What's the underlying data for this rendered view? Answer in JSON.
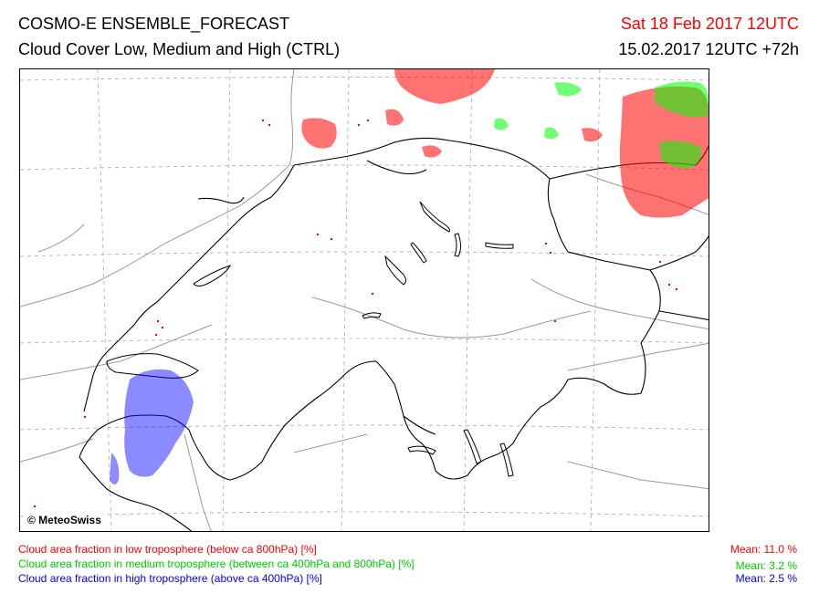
{
  "header": {
    "title": "COSMO-E ENSEMBLE_FORECAST",
    "subtitle": "Cloud Cover Low, Medium and High (CTRL)",
    "valid_time": "Sat 18 Feb 2017 12UTC",
    "run_time": "15.02.2017 12UTC +72h"
  },
  "map": {
    "copyright": "© MeteoSwiss",
    "colors": {
      "low": "#ff0000",
      "medium": "#00ff00",
      "high": "#0000ff",
      "borders": "#000000",
      "rivers": "#999999",
      "grid": "#aaaaaa"
    }
  },
  "legend": {
    "low": {
      "label": "Cloud area fraction in low troposphere (below ca 800hPa) [%]",
      "mean": "Mean:  11.0 %"
    },
    "medium": {
      "label": "Cloud area fraction in medium troposphere (between ca 400hPa and 800hPa) [%]",
      "mean": "Mean:   3.2 %"
    },
    "high": {
      "label": "Cloud area fraction in high troposphere (above ca 400hPa) [%]",
      "mean": "Mean:   2.5 %"
    }
  }
}
